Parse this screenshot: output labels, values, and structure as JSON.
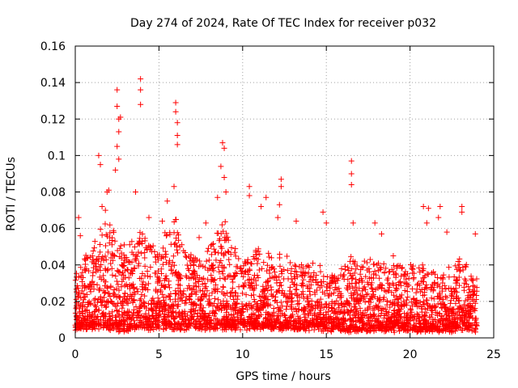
{
  "chart_data": {
    "type": "scatter",
    "title": "Day 274 of 2024, Rate Of TEC Index for receiver p032",
    "xlabel": "GPS time / hours",
    "ylabel": "ROTI / TECUs",
    "xlim": [
      0,
      25
    ],
    "ylim": [
      0,
      0.16
    ],
    "x_ticks": [
      "0",
      "5",
      "10",
      "15",
      "20",
      "25"
    ],
    "y_ticks": [
      "0",
      "0.02",
      "0.04",
      "0.06",
      "0.08",
      "0.1",
      "0.12",
      "0.14",
      "0.16"
    ],
    "grid": true,
    "marker": "+",
    "color": "#ff0000",
    "envelope": {
      "x": [
        0.0,
        0.5,
        1.0,
        1.5,
        2.0,
        2.5,
        3.0,
        3.5,
        4.0,
        4.5,
        5.0,
        5.5,
        6.0,
        6.5,
        7.0,
        7.5,
        8.0,
        8.5,
        9.0,
        9.5,
        10.0,
        10.5,
        11.0,
        11.5,
        12.0,
        12.5,
        13.0,
        13.5,
        14.0,
        14.5,
        15.0,
        15.5,
        16.0,
        16.5,
        17.0,
        17.5,
        18.0,
        18.5,
        19.0,
        19.5,
        20.0,
        20.5,
        21.0,
        21.5,
        22.0,
        22.5,
        23.0,
        23.5,
        24.0
      ],
      "typical_max": [
        0.035,
        0.045,
        0.05,
        0.06,
        0.07,
        0.055,
        0.05,
        0.055,
        0.06,
        0.055,
        0.05,
        0.06,
        0.065,
        0.05,
        0.045,
        0.045,
        0.055,
        0.06,
        0.065,
        0.05,
        0.045,
        0.045,
        0.05,
        0.045,
        0.05,
        0.045,
        0.04,
        0.04,
        0.045,
        0.04,
        0.035,
        0.035,
        0.04,
        0.045,
        0.04,
        0.045,
        0.045,
        0.04,
        0.04,
        0.04,
        0.04,
        0.04,
        0.04,
        0.035,
        0.035,
        0.04,
        0.045,
        0.04,
        0.035
      ],
      "typical_min": [
        0.006,
        0.006,
        0.006,
        0.006,
        0.006,
        0.005,
        0.005,
        0.006,
        0.006,
        0.006,
        0.006,
        0.006,
        0.006,
        0.006,
        0.006,
        0.006,
        0.006,
        0.006,
        0.006,
        0.006,
        0.006,
        0.006,
        0.006,
        0.006,
        0.006,
        0.006,
        0.006,
        0.006,
        0.006,
        0.006,
        0.005,
        0.005,
        0.005,
        0.005,
        0.005,
        0.005,
        0.005,
        0.005,
        0.005,
        0.005,
        0.005,
        0.005,
        0.005,
        0.005,
        0.005,
        0.005,
        0.005,
        0.005,
        0.005
      ]
    },
    "peaks": [
      {
        "x": 0.2,
        "y": 0.066
      },
      {
        "x": 0.3,
        "y": 0.056
      },
      {
        "x": 1.4,
        "y": 0.1
      },
      {
        "x": 1.5,
        "y": 0.095
      },
      {
        "x": 1.6,
        "y": 0.072
      },
      {
        "x": 1.8,
        "y": 0.07
      },
      {
        "x": 1.9,
        "y": 0.08
      },
      {
        "x": 2.0,
        "y": 0.081
      },
      {
        "x": 2.5,
        "y": 0.136
      },
      {
        "x": 2.5,
        "y": 0.127
      },
      {
        "x": 2.6,
        "y": 0.12
      },
      {
        "x": 2.6,
        "y": 0.113
      },
      {
        "x": 2.5,
        "y": 0.105
      },
      {
        "x": 2.6,
        "y": 0.098
      },
      {
        "x": 2.4,
        "y": 0.092
      },
      {
        "x": 2.7,
        "y": 0.121
      },
      {
        "x": 3.6,
        "y": 0.08
      },
      {
        "x": 3.9,
        "y": 0.142
      },
      {
        "x": 3.9,
        "y": 0.136
      },
      {
        "x": 3.9,
        "y": 0.128
      },
      {
        "x": 4.4,
        "y": 0.066
      },
      {
        "x": 5.2,
        "y": 0.064
      },
      {
        "x": 5.5,
        "y": 0.075
      },
      {
        "x": 6.0,
        "y": 0.129
      },
      {
        "x": 6.0,
        "y": 0.124
      },
      {
        "x": 6.1,
        "y": 0.118
      },
      {
        "x": 6.1,
        "y": 0.111
      },
      {
        "x": 6.1,
        "y": 0.106
      },
      {
        "x": 5.9,
        "y": 0.083
      },
      {
        "x": 7.4,
        "y": 0.055
      },
      {
        "x": 7.8,
        "y": 0.063
      },
      {
        "x": 8.5,
        "y": 0.077
      },
      {
        "x": 8.8,
        "y": 0.107
      },
      {
        "x": 8.9,
        "y": 0.104
      },
      {
        "x": 8.7,
        "y": 0.094
      },
      {
        "x": 8.9,
        "y": 0.088
      },
      {
        "x": 9.0,
        "y": 0.08
      },
      {
        "x": 10.4,
        "y": 0.083
      },
      {
        "x": 10.4,
        "y": 0.078
      },
      {
        "x": 11.4,
        "y": 0.077
      },
      {
        "x": 11.1,
        "y": 0.072
      },
      {
        "x": 12.3,
        "y": 0.087
      },
      {
        "x": 12.3,
        "y": 0.083
      },
      {
        "x": 12.2,
        "y": 0.073
      },
      {
        "x": 12.1,
        "y": 0.066
      },
      {
        "x": 13.2,
        "y": 0.064
      },
      {
        "x": 14.8,
        "y": 0.069
      },
      {
        "x": 15.0,
        "y": 0.063
      },
      {
        "x": 16.5,
        "y": 0.097
      },
      {
        "x": 16.5,
        "y": 0.09
      },
      {
        "x": 16.5,
        "y": 0.084
      },
      {
        "x": 16.6,
        "y": 0.063
      },
      {
        "x": 17.9,
        "y": 0.063
      },
      {
        "x": 18.3,
        "y": 0.057
      },
      {
        "x": 19.0,
        "y": 0.045
      },
      {
        "x": 20.8,
        "y": 0.072
      },
      {
        "x": 21.1,
        "y": 0.071
      },
      {
        "x": 21.0,
        "y": 0.063
      },
      {
        "x": 21.7,
        "y": 0.066
      },
      {
        "x": 21.8,
        "y": 0.072
      },
      {
        "x": 22.2,
        "y": 0.058
      },
      {
        "x": 23.1,
        "y": 0.072
      },
      {
        "x": 23.1,
        "y": 0.069
      },
      {
        "x": 23.9,
        "y": 0.057
      }
    ]
  }
}
